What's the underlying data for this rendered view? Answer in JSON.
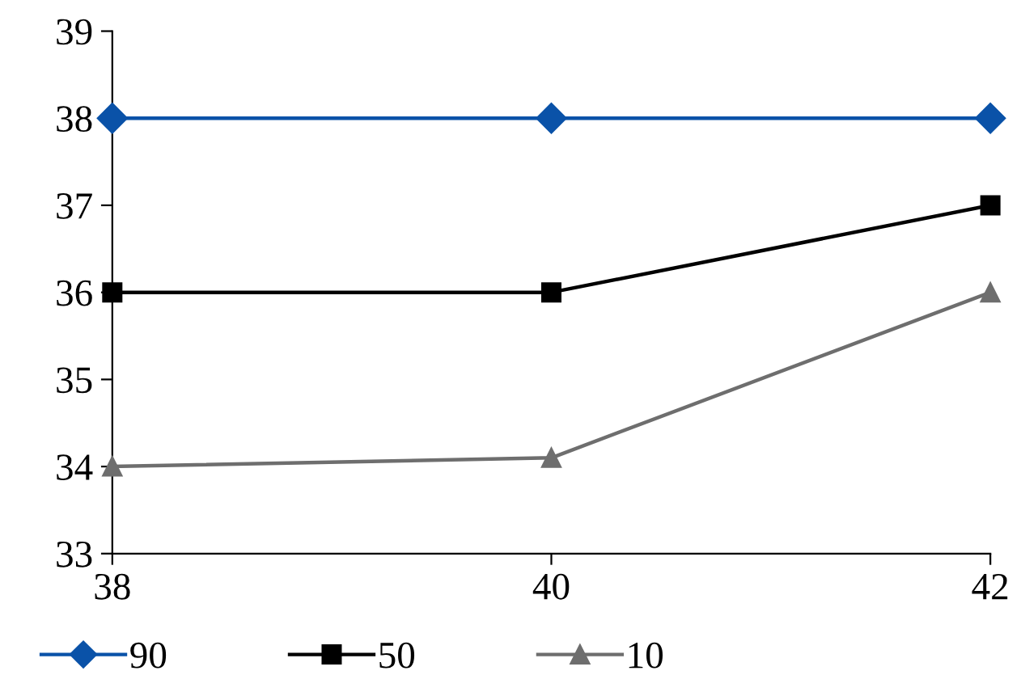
{
  "chart_data": {
    "type": "line",
    "x": [
      38,
      40,
      42
    ],
    "series": [
      {
        "name": "90",
        "color": "#0a52a8",
        "marker": "diamond",
        "values": [
          38,
          38,
          38
        ]
      },
      {
        "name": "50",
        "color": "#000000",
        "marker": "square",
        "values": [
          36.0,
          36.0,
          37.0
        ]
      },
      {
        "name": "10",
        "color": "#6e6e6e",
        "marker": "triangle",
        "values": [
          34.0,
          34.1,
          36.0
        ]
      }
    ],
    "xlim": [
      38,
      42
    ],
    "xticks": [
      38,
      40,
      42
    ],
    "ylim": [
      33,
      39
    ],
    "yticks": [
      33,
      34,
      35,
      36,
      37,
      38,
      39
    ],
    "grid": false,
    "legend": "bottom",
    "line_style": "solid"
  }
}
